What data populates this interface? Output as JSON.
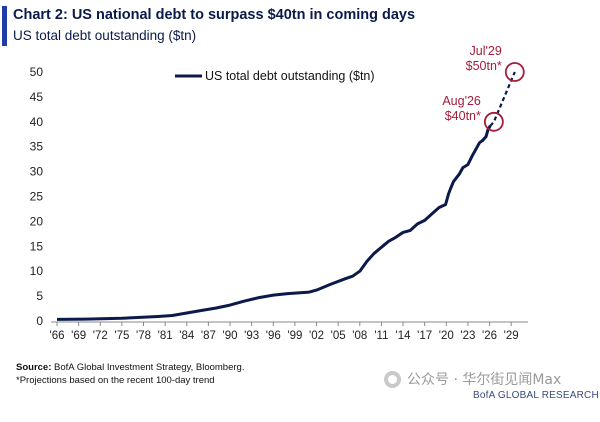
{
  "header": {
    "title": "Chart 2: US national debt to surpass $40tn in coming days",
    "subtitle": "US total debt outstanding ($tn)"
  },
  "footer": {
    "source_label": "Source:",
    "source_text": "BofA Global Investment Strategy, Bloomberg.",
    "note": "*Projections based on the recent 100-day trend"
  },
  "watermark": {
    "text": "公众号 · 华尔街见闻Max",
    "icon": "wechat-icon"
  },
  "brand": "BofA GLOBAL RESEARCH",
  "chart_data": {
    "type": "line",
    "title": "",
    "xlabel": "",
    "ylabel": "",
    "ylim": [
      0,
      50
    ],
    "xlim": [
      1966,
      2030.5
    ],
    "yticks": [
      0,
      5,
      10,
      15,
      20,
      25,
      30,
      35,
      40,
      45,
      50
    ],
    "xtick_values": [
      1966,
      1969,
      1972,
      1975,
      1978,
      1981,
      1984,
      1987,
      1990,
      1993,
      1996,
      1999,
      2002,
      2005,
      2008,
      2011,
      2014,
      2017,
      2020,
      2023,
      2026,
      2029
    ],
    "xtick_labels": [
      "'66",
      "'69",
      "'72",
      "'75",
      "'78",
      "'81",
      "'84",
      "'87",
      "'90",
      "'93",
      "'96",
      "'99",
      "'02",
      "'05",
      "'08",
      "'11",
      "'14",
      "'17",
      "'20",
      "'23",
      "'26",
      "'29"
    ],
    "legend": {
      "position": "top-center"
    },
    "grid": false,
    "colors": {
      "series": "#0b1a4a",
      "annotation": "#a51d3a",
      "axis": "#888888"
    },
    "series": [
      {
        "name": "US total debt outstanding ($tn)",
        "style": "solid",
        "points": [
          [
            1966,
            0.32
          ],
          [
            1970,
            0.38
          ],
          [
            1975,
            0.55
          ],
          [
            1980,
            0.9
          ],
          [
            1982,
            1.1
          ],
          [
            1984,
            1.6
          ],
          [
            1986,
            2.1
          ],
          [
            1988,
            2.6
          ],
          [
            1990,
            3.2
          ],
          [
            1992,
            4.0
          ],
          [
            1994,
            4.7
          ],
          [
            1996,
            5.2
          ],
          [
            1998,
            5.5
          ],
          [
            2000,
            5.7
          ],
          [
            2001,
            5.8
          ],
          [
            2002,
            6.2
          ],
          [
            2004,
            7.4
          ],
          [
            2006,
            8.5
          ],
          [
            2007,
            9.0
          ],
          [
            2008,
            10.0
          ],
          [
            2009,
            12.0
          ],
          [
            2010,
            13.6
          ],
          [
            2011,
            14.8
          ],
          [
            2012,
            16.0
          ],
          [
            2013,
            16.8
          ],
          [
            2014,
            17.8
          ],
          [
            2015,
            18.2
          ],
          [
            2016,
            19.5
          ],
          [
            2017,
            20.2
          ],
          [
            2018,
            21.5
          ],
          [
            2019,
            22.8
          ],
          [
            2019.9,
            23.4
          ],
          [
            2020.3,
            25.5
          ],
          [
            2020.6,
            26.6
          ],
          [
            2021,
            28.0
          ],
          [
            2021.8,
            29.5
          ],
          [
            2022.3,
            30.8
          ],
          [
            2023,
            31.4
          ],
          [
            2023.6,
            33.2
          ],
          [
            2024,
            34.2
          ],
          [
            2024.6,
            35.8
          ],
          [
            2025,
            36.2
          ],
          [
            2025.5,
            37.0
          ],
          [
            2025.8,
            38.5
          ],
          [
            2026.1,
            39.2
          ]
        ]
      },
      {
        "name": "Projection",
        "style": "dashed",
        "points": [
          [
            2026.1,
            39.2
          ],
          [
            2026.6,
            40.0
          ],
          [
            2029.5,
            50.0
          ]
        ]
      }
    ],
    "annotations": [
      {
        "x": 2026.6,
        "y": 40.0,
        "label_line1": "Aug'26",
        "label_line2": "$40tn*",
        "anchor": "left"
      },
      {
        "x": 2029.5,
        "y": 50.0,
        "label_line1": "Jul'29",
        "label_line2": "$50tn*",
        "anchor": "left"
      }
    ]
  }
}
